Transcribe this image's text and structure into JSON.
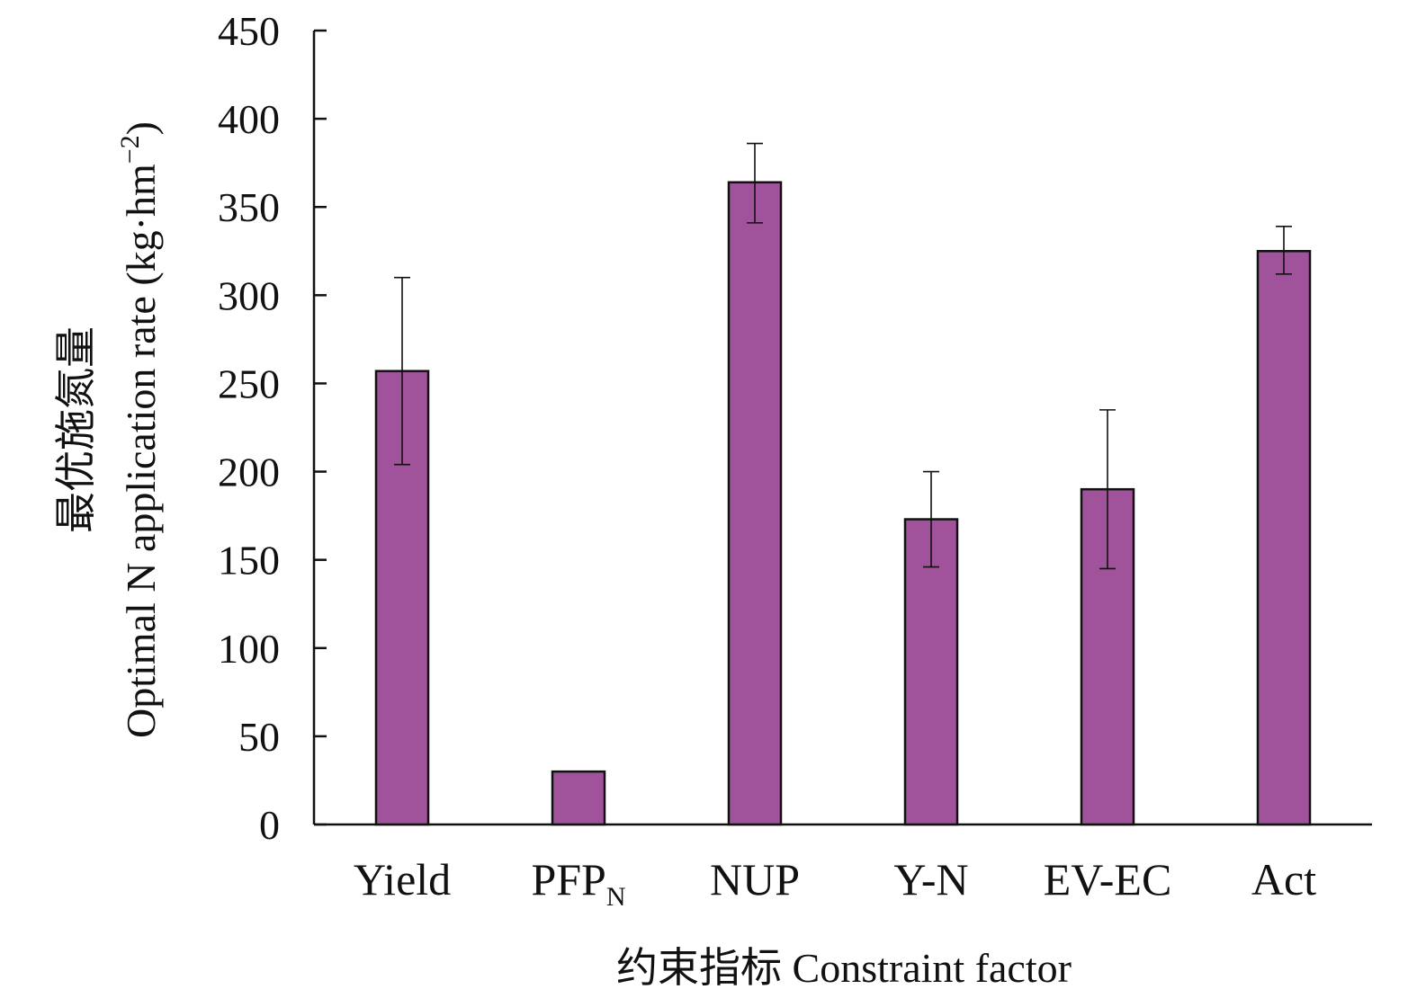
{
  "chart_data": {
    "type": "bar",
    "categories": [
      "Yield",
      "PFP",
      "NUP",
      "Y-N",
      "EV-EC",
      "Act"
    ],
    "category_subscripts": [
      "",
      "N",
      "",
      "",
      "",
      ""
    ],
    "values": [
      257,
      30,
      364,
      173,
      190,
      325
    ],
    "error_low": [
      204,
      null,
      341,
      146,
      145,
      312
    ],
    "error_high": [
      310,
      null,
      386,
      200,
      235,
      339
    ],
    "ylim": [
      0,
      450
    ],
    "yticks": [
      0,
      50,
      100,
      150,
      200,
      250,
      300,
      350,
      400,
      450
    ],
    "ylabel_cn": "最优施氮量",
    "ylabel_en": "Optimal N application rate (kg·hm",
    "ylabel_sup": "−2",
    "ylabel_close": ")",
    "xlabel": "约束指标 Constraint factor",
    "bar_color": "#a0539b",
    "grid": false
  }
}
